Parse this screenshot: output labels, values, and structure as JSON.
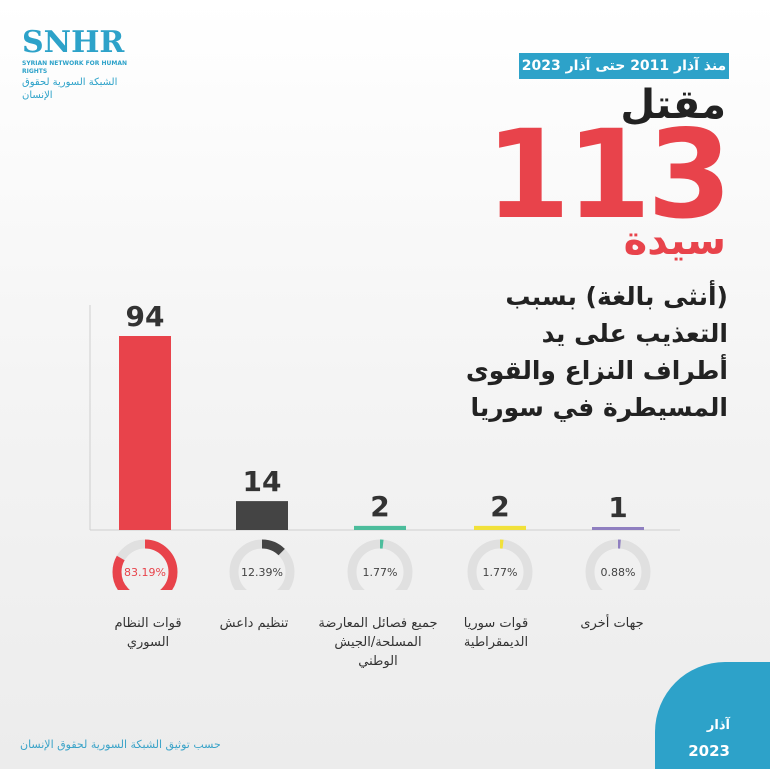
{
  "logo": {
    "brand": "SNHR",
    "name_en": "SYRIAN NETWORK FOR HUMAN RIGHTS",
    "name_ar": "الشبكة السورية لحقوق الإنسان"
  },
  "badge": "منذ آذار 2011 حتى آذار 2023",
  "headline": {
    "line1": "مقتل",
    "number": "113",
    "line2": "سيدة",
    "desc1": "(أنثى بالغة) بسبب",
    "desc2": "التعذيب على يد",
    "desc3": "أطراف النزاع والقوى",
    "desc4": "المسيطرة في سوريا"
  },
  "chart_data": {
    "type": "bar",
    "title": "",
    "xlabel": "",
    "ylabel": "",
    "categories": [
      {
        "line1": "قوات النظام",
        "line2": "السوري"
      },
      {
        "line1": "تنظيم داعش",
        "line2": ""
      },
      {
        "line1": "جميع فصائل المعارضة",
        "line2": "المسلحة/الجيش الوطني"
      },
      {
        "line1": "قوات سوريا",
        "line2": "الديمقراطية"
      },
      {
        "line1": "جهات أخرى",
        "line2": ""
      }
    ],
    "values": [
      94,
      14,
      2,
      2,
      1
    ],
    "value_labels": [
      "94",
      "14",
      "2",
      "2",
      "1"
    ],
    "percentages": [
      83.19,
      12.39,
      1.77,
      1.77,
      0.88
    ],
    "percent_labels": [
      "83.19%",
      "12.39%",
      "1.77%",
      "1.77%",
      "0.88%"
    ],
    "colors": [
      "#e8434b",
      "#444444",
      "#4cbd9c",
      "#f1e13a",
      "#8f7fc0"
    ],
    "ylim": [
      0,
      94
    ]
  },
  "footer": {
    "source": "حسب توثيق الشبكة السورية لحقوق الإنسان",
    "month": "آذار",
    "year": "2023"
  }
}
